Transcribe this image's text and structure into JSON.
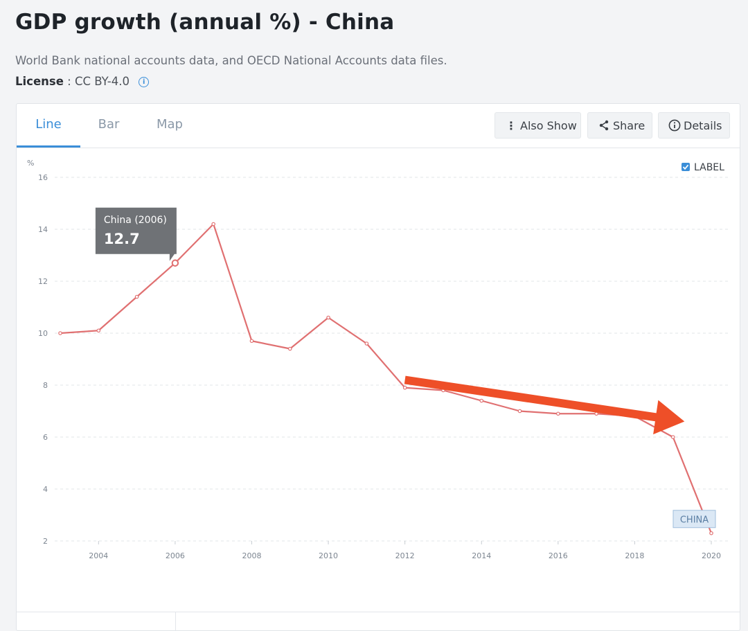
{
  "header": {
    "title": "GDP growth (annual %) - China",
    "source": "World Bank national accounts data, and OECD National Accounts data files.",
    "license_label": "License",
    "license_value": ": CC BY-4.0",
    "info_icon": "info-icon"
  },
  "tabs": [
    {
      "label": "Line",
      "active": true
    },
    {
      "label": "Bar",
      "active": false
    },
    {
      "label": "Map",
      "active": false
    }
  ],
  "toolbar": {
    "also_show": {
      "label": "Also Show",
      "icon": "kebab-icon"
    },
    "share": {
      "label": "Share",
      "icon": "share-icon"
    },
    "details": {
      "label": "Details",
      "icon": "info-icon"
    }
  },
  "chart_data": {
    "type": "line",
    "ylabel": "%",
    "ylim": [
      2,
      16
    ],
    "yticks": [
      "2",
      "4",
      "6",
      "8",
      "10",
      "12",
      "14",
      "16"
    ],
    "xlim": [
      2003,
      2020
    ],
    "xticks": [
      "2004",
      "2006",
      "2008",
      "2010",
      "2012",
      "2014",
      "2016",
      "2018",
      "2020"
    ],
    "grid": true,
    "legend_toggle": {
      "label": "LABEL",
      "checked": true
    },
    "series": [
      {
        "name": "CHINA",
        "color": "#e07071",
        "x": [
          2003,
          2004,
          2005,
          2006,
          2007,
          2008,
          2009,
          2010,
          2011,
          2012,
          2013,
          2014,
          2015,
          2016,
          2017,
          2018,
          2019,
          2020
        ],
        "values": [
          10.0,
          10.1,
          11.4,
          12.7,
          14.2,
          9.7,
          9.4,
          10.6,
          9.6,
          7.9,
          7.8,
          7.4,
          7.0,
          6.9,
          6.9,
          6.8,
          6.0,
          2.3
        ]
      }
    ],
    "tooltip": {
      "title": "China (2006)",
      "value": "12.7",
      "x": 2006
    },
    "annotation_arrow": {
      "color": "#ee4f28",
      "from": [
        2012,
        8.2
      ],
      "to": [
        2019.3,
        6.6
      ]
    }
  }
}
